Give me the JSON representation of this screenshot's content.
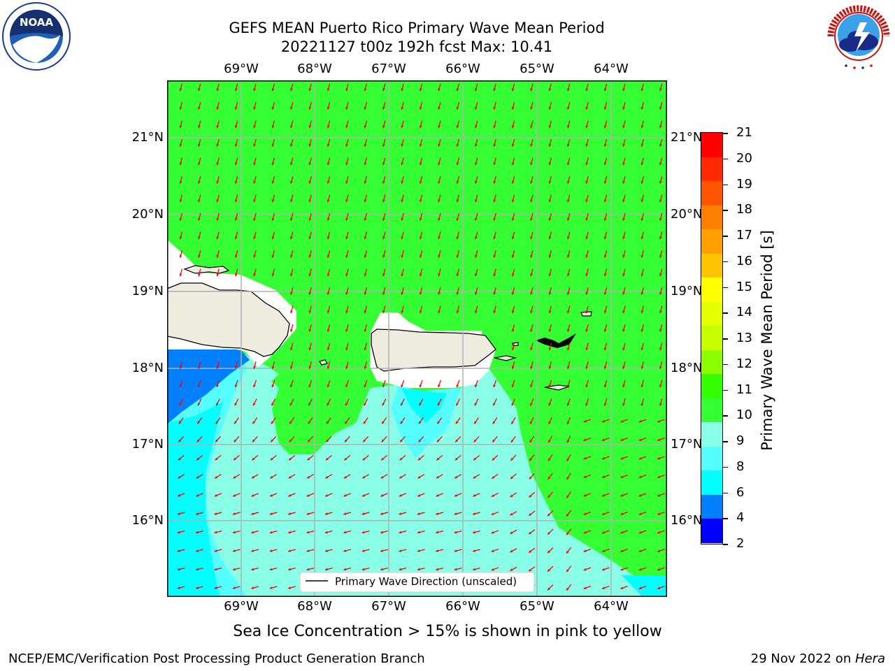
{
  "header": {
    "title_line1": "GEFS MEAN Puerto Rico Primary Wave Mean Period",
    "title_line2": "20221127 t00z 192h fcst   Max: 10.41"
  },
  "logos": {
    "left": {
      "name": "noaa-logo",
      "text": "NOAA",
      "ring_text": "NATIONAL OCEANIC AND ATMOSPHERIC ADMINISTRATION • U.S. DEPARTMENT OF COMMERCE"
    },
    "right": {
      "name": "nws-logo",
      "ring_text": "NATIONAL WEATHER SERVICE"
    }
  },
  "map": {
    "lon_labels": [
      "69°W",
      "68°W",
      "67°W",
      "66°W",
      "65°W",
      "64°W"
    ],
    "lat_labels": [
      "21°N",
      "20°N",
      "19°N",
      "18°N",
      "17°N",
      "16°N"
    ],
    "legend_label": "Primary Wave Direction (unscaled)",
    "colors": {
      "land": "#eeecdf",
      "period_10_11": "#33ff33",
      "period_9_10": "#88ffe6",
      "period_8_9": "#55ffff",
      "period_6_8": "#00ffff",
      "period_4_6": "#0080ff",
      "arrow": "#ff0000",
      "grid": "#b0b0b0"
    }
  },
  "colorbar": {
    "title": "Primary Wave Mean Period [s]",
    "ticks": [
      "21",
      "20",
      "19",
      "18",
      "17",
      "16",
      "15",
      "14",
      "13",
      "12",
      "11",
      "10",
      "9",
      "8",
      "6",
      "4",
      "2"
    ],
    "bands_top_to_bottom": [
      "#ff0000",
      "#ff2a00",
      "#ff5500",
      "#ff7f00",
      "#ff9f00",
      "#ffc400",
      "#ffff00",
      "#e5ff00",
      "#c5ff00",
      "#8cff00",
      "#33ff00",
      "#33ff33",
      "#88ffe6",
      "#55ffff",
      "#00ffff",
      "#0080ff",
      "#0000ff"
    ]
  },
  "footnote": "Sea Ice Concentration > 15% is shown in pink to yellow",
  "footer": {
    "left": "NCEP/EMC/Verification Post Processing Product Generation Branch",
    "right_prefix": "29 Nov 2022 on ",
    "right_host": "Hera"
  }
}
